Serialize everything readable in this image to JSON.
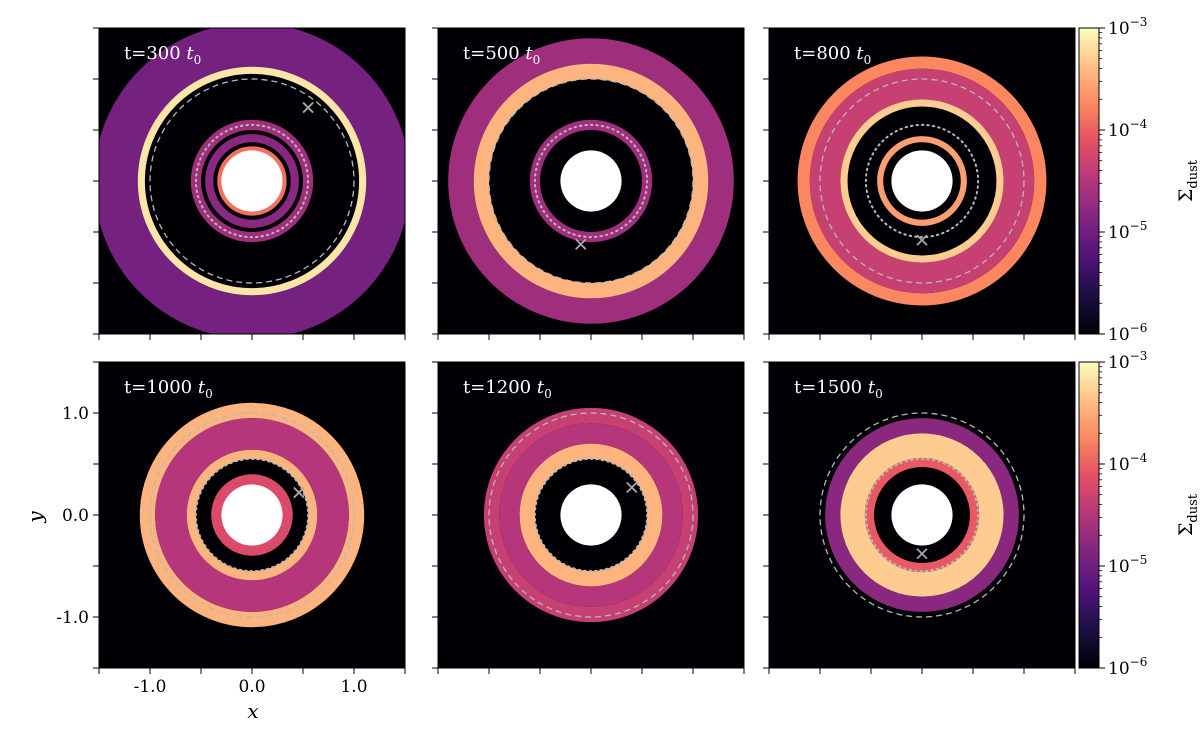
{
  "chart_data": {
    "type": "heatmap",
    "xlabel": "x",
    "ylabel": "y",
    "xlim": [
      -1.5,
      1.5
    ],
    "ylim": [
      -1.5,
      1.5
    ],
    "xticks": [
      "-1.0",
      "0.0",
      "1.0"
    ],
    "yticks": [
      "1.0",
      "0.0",
      "-1.0"
    ],
    "colorbar": {
      "label": "Σ",
      "label_sub": "dust",
      "scale": "log",
      "range": [
        1e-06,
        0.001
      ],
      "ticks": [
        {
          "base": "10",
          "exp": "−3"
        },
        {
          "base": "10",
          "exp": "−4"
        },
        {
          "base": "10",
          "exp": "−5"
        },
        {
          "base": "10",
          "exp": "−6"
        }
      ],
      "colormap": "magma"
    },
    "reference_circles": {
      "dashed_radius": 1.0,
      "dotted_radius": 0.55,
      "inner_hole_radius": 0.3
    },
    "panels": [
      {
        "label": "t=300",
        "unit": "t",
        "unit_sub": "0",
        "planet": [
          0.55,
          0.72
        ],
        "rings": [
          [
            0.28,
            0.34,
            0.7
          ],
          [
            0.38,
            0.46,
            0.4
          ],
          [
            0.5,
            0.6,
            0.45
          ],
          [
            1.05,
            1.12,
            0.95
          ],
          [
            1.12,
            1.55,
            0.35
          ]
        ]
      },
      {
        "label": "t=500",
        "unit": "t",
        "unit_sub": "0",
        "planet": [
          -0.1,
          -0.62
        ],
        "rings": [
          [
            0.5,
            0.6,
            0.45
          ],
          [
            1.0,
            1.15,
            0.85
          ],
          [
            1.15,
            1.4,
            0.45
          ]
        ]
      },
      {
        "label": "t=800",
        "unit": "t",
        "unit_sub": "0",
        "planet": [
          0.0,
          -0.58
        ],
        "rings": [
          [
            0.38,
            0.44,
            0.8
          ],
          [
            0.73,
            0.8,
            0.9
          ],
          [
            0.8,
            1.1,
            0.55
          ],
          [
            1.1,
            1.22,
            0.75
          ]
        ]
      },
      {
        "label": "t=1000",
        "unit": "t",
        "unit_sub": "0",
        "planet": [
          0.46,
          0.22
        ],
        "rings": [
          [
            0.28,
            0.4,
            0.6
          ],
          [
            0.55,
            0.64,
            0.85
          ],
          [
            0.64,
            0.95,
            0.5
          ],
          [
            0.95,
            1.1,
            0.85
          ]
        ]
      },
      {
        "label": "t=1200",
        "unit": "t",
        "unit_sub": "0",
        "planet": [
          0.4,
          0.27
        ],
        "rings": [
          [
            0.55,
            0.7,
            0.85
          ],
          [
            0.7,
            0.9,
            0.5
          ],
          [
            0.9,
            1.05,
            0.55
          ]
        ]
      },
      {
        "label": "t=1500",
        "unit": "t",
        "unit_sub": "0",
        "planet": [
          0.0,
          -0.38
        ],
        "rings": [
          [
            0.47,
            0.56,
            0.65
          ],
          [
            0.56,
            0.8,
            0.9
          ],
          [
            0.8,
            0.95,
            0.4
          ]
        ]
      }
    ]
  }
}
